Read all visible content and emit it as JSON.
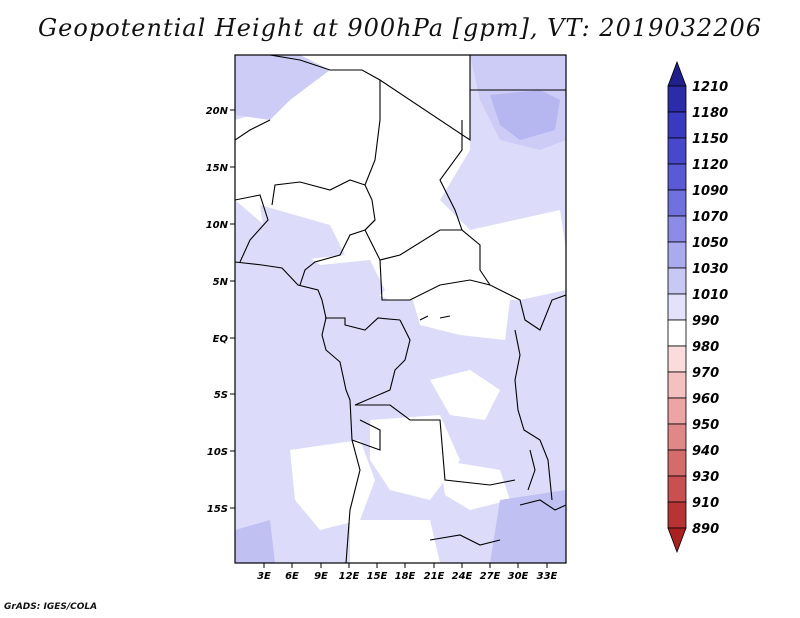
{
  "title": "Geopotential Height at 900hPa [gpm], VT: 2019032206",
  "credit": "GrADS: IGES/COLA",
  "map": {
    "region": "Central Africa",
    "variable": "Geopotential Height",
    "level": "900hPa",
    "units": "gpm",
    "valid_time": "2019032206",
    "lat_labels": [
      "20N",
      "15N",
      "10N",
      "5N",
      "EQ",
      "5S",
      "10S",
      "15S"
    ],
    "lon_labels": [
      "3E",
      "6E",
      "9E",
      "12E",
      "15E",
      "18E",
      "21E",
      "24E",
      "27E",
      "30E",
      "33E"
    ]
  },
  "colorbar": {
    "levels": [
      "1210",
      "1180",
      "1150",
      "1120",
      "1090",
      "1070",
      "1050",
      "1030",
      "1010",
      "990",
      "980",
      "970",
      "960",
      "950",
      "940",
      "930",
      "910",
      "890"
    ],
    "colors": [
      "#20208c",
      "#2c2ca8",
      "#3a3ac0",
      "#4848cc",
      "#5a5ad6",
      "#7070de",
      "#8c8ce6",
      "#aaaaee",
      "#c8c8f4",
      "#e2e2fa",
      "#ffffff",
      "#fadcdc",
      "#f4c0c0",
      "#eca4a4",
      "#e08888",
      "#d46c6c",
      "#c85050",
      "#b83434",
      "#a82020"
    ]
  }
}
